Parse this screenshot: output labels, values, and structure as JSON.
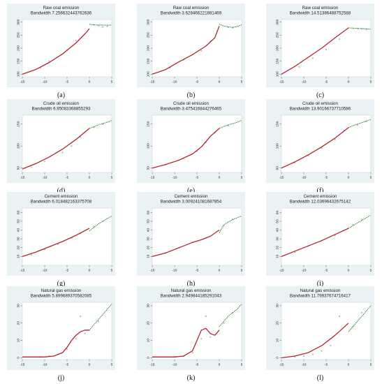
{
  "colors": {
    "panel_bg": "#eaf2f3",
    "plot_bg": "#ffffff",
    "fit_left": "#b5232f",
    "fit_right": "#2f7d32",
    "scatter": "#b3b8bd",
    "text": "#222222"
  },
  "chart_data": [
    {
      "type": "scatter",
      "panel_label": "(a)",
      "title": "Raw coal emission",
      "subtitle": "Bandwidth 7.256632443762636",
      "xlim": [
        -15,
        5
      ],
      "ylim": [
        90,
        310
      ],
      "x_ticks": [
        -15,
        -10,
        -5,
        0,
        5
      ],
      "y_ticks": [
        100,
        150,
        200,
        250,
        300
      ],
      "fit_left": {
        "x": [
          -15,
          -12,
          -9,
          -6,
          -3,
          -1,
          0
        ],
        "y": [
          100,
          118,
          145,
          178,
          220,
          255,
          275
        ]
      },
      "fit_right": {
        "x": [
          0,
          1,
          2,
          3,
          4,
          5
        ],
        "y": [
          292,
          290,
          289,
          289,
          288,
          289
        ]
      },
      "points": {
        "x": [
          -11,
          -9,
          -5,
          -3,
          1,
          2,
          3,
          4
        ],
        "y": [
          125,
          150,
          192,
          230,
          290,
          286,
          282,
          284
        ]
      }
    },
    {
      "type": "scatter",
      "panel_label": "(b)",
      "title": "Raw coal emission",
      "subtitle": "Bandwidth 3.628466221881469",
      "xlim": [
        -15,
        5
      ],
      "ylim": [
        90,
        310
      ],
      "x_ticks": [
        -15,
        -10,
        -5,
        0,
        5
      ],
      "y_ticks": [
        100,
        150,
        200,
        250,
        300
      ],
      "fit_left": {
        "x": [
          -15,
          -12,
          -9,
          -6,
          -3,
          -1,
          0
        ],
        "y": [
          100,
          118,
          148,
          175,
          208,
          240,
          285
        ]
      },
      "fit_right": {
        "x": [
          0,
          1,
          2,
          3,
          4,
          5
        ],
        "y": [
          292,
          285,
          282,
          280,
          283,
          290
        ]
      },
      "points": {
        "x": [
          -11,
          -8,
          -4,
          -2,
          2,
          3
        ],
        "y": [
          125,
          155,
          190,
          225,
          280,
          278
        ]
      }
    },
    {
      "type": "scatter",
      "panel_label": "(c)",
      "title": "Raw coal emission",
      "subtitle": "Bandwidth 14.51386488752588",
      "xlim": [
        -15,
        5
      ],
      "ylim": [
        90,
        310
      ],
      "x_ticks": [
        -15,
        -10,
        -5,
        0,
        5
      ],
      "y_ticks": [
        100,
        150,
        200,
        250,
        300
      ],
      "fit_left": {
        "x": [
          -15,
          -12,
          -9,
          -6,
          -3,
          0
        ],
        "y": [
          100,
          130,
          165,
          200,
          240,
          278
        ]
      },
      "fit_right": {
        "x": [
          0,
          1,
          2,
          3,
          4,
          5
        ],
        "y": [
          278,
          277,
          276,
          275,
          274,
          273
        ]
      },
      "points": {
        "x": [
          -11,
          -8,
          -5,
          -2,
          2,
          3,
          4
        ],
        "y": [
          128,
          162,
          195,
          235,
          276,
          275,
          272
        ]
      }
    },
    {
      "type": "scatter",
      "panel_label": "(d)",
      "title": "Crude oil emission",
      "subtitle": "Bandwidth 6.95083368855293",
      "xlim": [
        -15,
        5
      ],
      "ylim": [
        40,
        170
      ],
      "x_ticks": [
        -15,
        -10,
        -5,
        0,
        5
      ],
      "y_ticks": [
        50,
        100,
        150
      ],
      "fit_left": {
        "x": [
          -15,
          -12,
          -9,
          -6,
          -3,
          0
        ],
        "y": [
          48,
          60,
          75,
          93,
          115,
          140
        ]
      },
      "fit_right": {
        "x": [
          0,
          1,
          2,
          3,
          4,
          5
        ],
        "y": [
          140,
          144,
          148,
          151,
          154,
          158
        ]
      },
      "points": {
        "x": [
          -13,
          -10,
          -6,
          -4,
          -2,
          1,
          3
        ],
        "y": [
          52,
          65,
          85,
          100,
          120,
          143,
          150
        ]
      }
    },
    {
      "type": "scatter",
      "panel_label": "(e)",
      "title": "Crude oil emission",
      "subtitle": "Bandwidth 3.475416844276465",
      "xlim": [
        -15,
        5
      ],
      "ylim": [
        40,
        170
      ],
      "x_ticks": [
        -15,
        -10,
        -5,
        0,
        5
      ],
      "y_ticks": [
        50,
        100,
        150
      ],
      "fit_left": {
        "x": [
          -15,
          -12,
          -9,
          -6,
          -4,
          -2,
          0
        ],
        "y": [
          50,
          58,
          68,
          82,
          98,
          122,
          140
        ]
      },
      "fit_right": {
        "x": [
          0,
          1,
          2,
          3,
          4,
          5
        ],
        "y": [
          140,
          144,
          148,
          151,
          154,
          158
        ]
      },
      "points": {
        "x": [
          -12,
          -8,
          -5,
          -3,
          -1,
          2
        ],
        "y": [
          58,
          72,
          88,
          108,
          130,
          146
        ]
      }
    },
    {
      "type": "scatter",
      "panel_label": "(f)",
      "title": "Crude oil emission",
      "subtitle": "Bandwidth 13.90166737710586",
      "xlim": [
        -15,
        5
      ],
      "ylim": [
        40,
        170
      ],
      "x_ticks": [
        -15,
        -10,
        -5,
        0,
        5
      ],
      "y_ticks": [
        50,
        100,
        150
      ],
      "fit_left": {
        "x": [
          -15,
          -12,
          -9,
          -6,
          -3,
          0
        ],
        "y": [
          50,
          64,
          80,
          98,
          118,
          142
        ]
      },
      "fit_right": {
        "x": [
          0,
          1,
          2,
          3,
          4,
          5
        ],
        "y": [
          142,
          146,
          150,
          153,
          157,
          160
        ]
      },
      "points": {
        "x": [
          -12,
          -9,
          -6,
          -3,
          -1,
          2,
          4
        ],
        "y": [
          62,
          78,
          95,
          115,
          135,
          148,
          156
        ]
      }
    },
    {
      "type": "scatter",
      "panel_label": "(g)",
      "title": "Cement emission",
      "subtitle": "Bandwidth 6.018482163375708",
      "xlim": [
        -15,
        5
      ],
      "ylim": [
        0,
        65
      ],
      "x_ticks": [
        -15,
        -10,
        -5,
        0,
        5
      ],
      "y_ticks": [
        10,
        20,
        30,
        40,
        50,
        60
      ],
      "fit_left": {
        "x": [
          -15,
          -12,
          -9,
          -6,
          -3,
          0
        ],
        "y": [
          10,
          15,
          21,
          27,
          34,
          42
        ]
      },
      "fit_right": {
        "x": [
          0,
          1,
          2,
          3,
          4,
          5
        ],
        "y": [
          39,
          43,
          47,
          50,
          53,
          56
        ]
      },
      "points": {
        "x": [
          -13,
          -10,
          -7,
          -4,
          -2,
          1,
          3
        ],
        "y": [
          12,
          18,
          24,
          31,
          36,
          44,
          50
        ]
      }
    },
    {
      "type": "scatter",
      "panel_label": "(h)",
      "title": "Cement emission",
      "subtitle": "Bandwidth 3.009241081687854",
      "xlim": [
        -15,
        5
      ],
      "ylim": [
        0,
        65
      ],
      "x_ticks": [
        -15,
        -10,
        -5,
        0,
        5
      ],
      "y_ticks": [
        10,
        20,
        30,
        40,
        50,
        60
      ],
      "fit_left": {
        "x": [
          -15,
          -12,
          -9,
          -6,
          -4,
          -2,
          0
        ],
        "y": [
          10,
          14,
          20,
          26,
          29,
          33,
          40
        ]
      },
      "fit_right": {
        "x": [
          0,
          1,
          2,
          3,
          4,
          5
        ],
        "y": [
          37,
          46,
          49,
          52,
          54,
          56
        ]
      },
      "points": {
        "x": [
          -12,
          -9,
          -6,
          -3,
          1,
          3
        ],
        "y": [
          14,
          20,
          26,
          31,
          45,
          52
        ]
      }
    },
    {
      "type": "scatter",
      "panel_label": "(i)",
      "title": "Cement emission",
      "subtitle": "Bandwidth 12.03696432675142",
      "xlim": [
        -15,
        5
      ],
      "ylim": [
        0,
        65
      ],
      "x_ticks": [
        -15,
        -10,
        -5,
        0,
        5
      ],
      "y_ticks": [
        10,
        20,
        30,
        40,
        50,
        60
      ],
      "fit_left": {
        "x": [
          -15,
          -12,
          -9,
          -6,
          -3,
          0
        ],
        "y": [
          10,
          16,
          22,
          28,
          35,
          42
        ]
      },
      "fit_right": {
        "x": [
          0,
          1,
          2,
          3,
          4,
          5
        ],
        "y": [
          42,
          45,
          48,
          51,
          54,
          57
        ]
      },
      "points": {
        "x": [
          -12,
          -9,
          -6,
          -3,
          1,
          3
        ],
        "y": [
          15,
          22,
          28,
          34,
          46,
          52
        ]
      }
    },
    {
      "type": "scatter",
      "panel_label": "(j)",
      "title": "Natural gas emission",
      "subtitle": "Bandwidth 5.899689370582085",
      "xlim": [
        -15,
        5
      ],
      "ylim": [
        -1,
        32
      ],
      "x_ticks": [
        -15,
        -10,
        -5,
        0,
        5
      ],
      "y_ticks": [
        0,
        10,
        20,
        30
      ],
      "fit_left": {
        "x": [
          -15,
          -10,
          -8,
          -6,
          -5,
          -4,
          -3,
          -2,
          -1,
          0
        ],
        "y": [
          0.5,
          0.5,
          1,
          3,
          6,
          10,
          13,
          15,
          16,
          16
        ]
      },
      "fit_right": {
        "x": [
          0,
          1,
          2,
          3,
          4,
          5
        ],
        "y": [
          16,
          19,
          22,
          25,
          28,
          31
        ]
      },
      "points": {
        "x": [
          -11,
          -9,
          -7,
          -5,
          -3,
          -2,
          -1,
          2
        ],
        "y": [
          0.5,
          1,
          2,
          5,
          11,
          24,
          14,
          21
        ]
      }
    },
    {
      "type": "scatter",
      "panel_label": "(k)",
      "title": "Natural gas emission",
      "subtitle": "Bandwidth 2.949844185291043",
      "xlim": [
        -15,
        5
      ],
      "ylim": [
        -1,
        32
      ],
      "x_ticks": [
        -15,
        -10,
        -5,
        0,
        5
      ],
      "y_ticks": [
        0,
        10,
        20,
        30
      ],
      "fit_left": {
        "x": [
          -15,
          -10,
          -8,
          -6,
          -5,
          -4,
          -3,
          -2,
          -1,
          0
        ],
        "y": [
          0.5,
          0.5,
          1,
          4,
          10,
          16,
          17,
          14,
          13,
          16
        ]
      },
      "fit_right": {
        "x": [
          0,
          1,
          2,
          3,
          4,
          5
        ],
        "y": [
          18,
          21,
          24,
          26,
          28,
          31
        ]
      },
      "points": {
        "x": [
          -10,
          -8,
          -6,
          -4,
          -3,
          -2,
          1,
          3
        ],
        "y": [
          0.5,
          1,
          3,
          11,
          24,
          12,
          20,
          26
        ]
      }
    },
    {
      "type": "scatter",
      "panel_label": "(l)",
      "title": "Natural gas emission",
      "subtitle": "Bandwidth 11.79937674716417",
      "xlim": [
        -15,
        5
      ],
      "ylim": [
        -1,
        32
      ],
      "x_ticks": [
        -15,
        -10,
        -5,
        0,
        5
      ],
      "y_ticks": [
        0,
        10,
        20,
        30
      ],
      "fit_left": {
        "x": [
          -15,
          -12,
          -9,
          -6,
          -3,
          0
        ],
        "y": [
          0,
          1,
          3,
          7,
          13,
          20
        ]
      },
      "fit_right": {
        "x": [
          0,
          1,
          2,
          3,
          4,
          5
        ],
        "y": [
          15,
          18,
          21,
          24,
          27,
          30
        ]
      },
      "points": {
        "x": [
          -12,
          -10,
          -8,
          -6,
          -4,
          -2,
          1,
          3
        ],
        "y": [
          0.5,
          1,
          2,
          4,
          7,
          24,
          18,
          26
        ]
      }
    }
  ]
}
